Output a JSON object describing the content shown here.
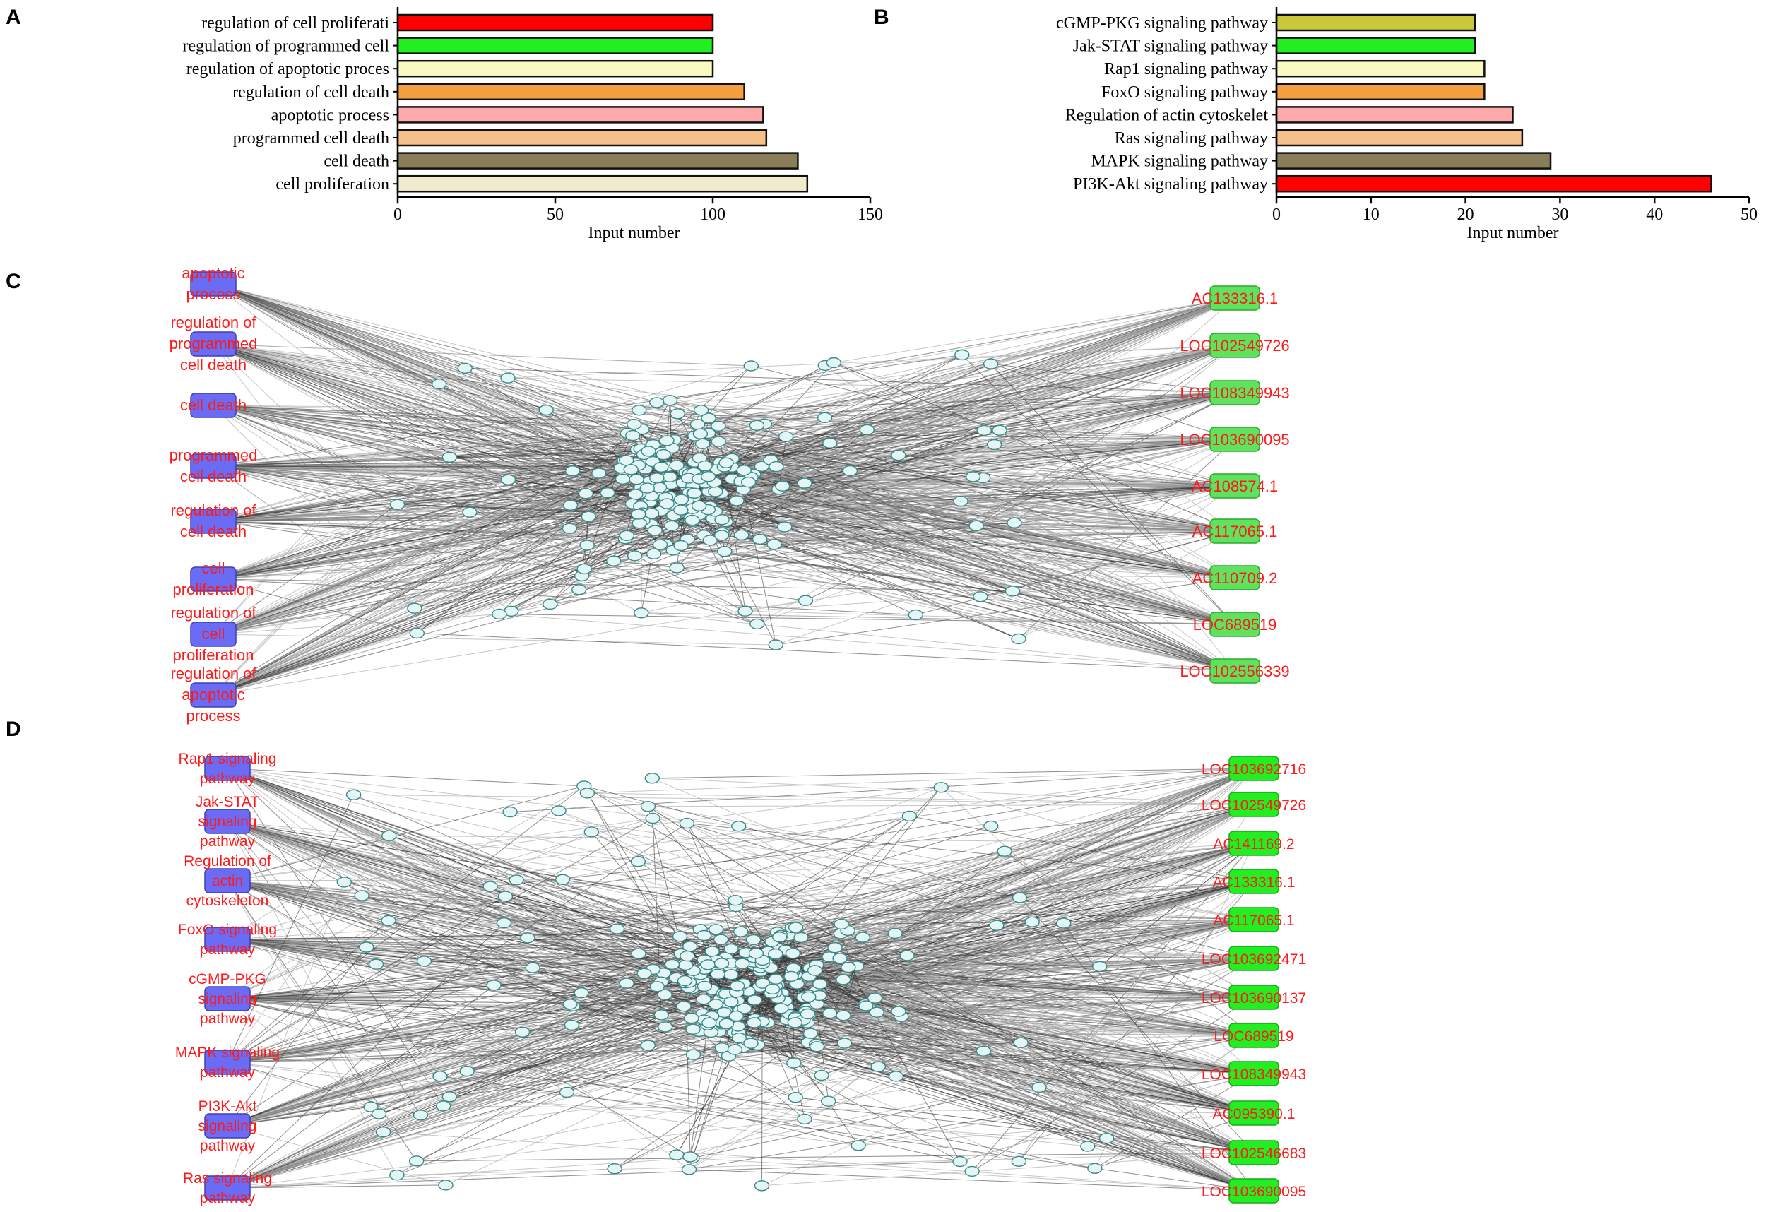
{
  "chart_data": [
    {
      "panel": "A",
      "type": "bar",
      "orientation": "horizontal",
      "categories": [
        "regulation of cell proliferati",
        "regulation of programmed cell ",
        "regulation of apoptotic proces",
        "regulation of cell death",
        "apoptotic process",
        "programmed cell death",
        "cell death",
        "cell proliferation"
      ],
      "values": [
        100,
        100,
        100,
        110,
        116,
        117,
        127,
        130
      ],
      "colors": [
        "#ff0000",
        "#22ee22",
        "#fafac0",
        "#f5a040",
        "#ffaaaa",
        "#f5c08a",
        "#8a7d5a",
        "#f0ebcc"
      ],
      "xlabel": "Input number",
      "xlim": [
        0,
        150
      ],
      "xticks": [
        0,
        50,
        100,
        150
      ]
    },
    {
      "panel": "B",
      "type": "bar",
      "orientation": "horizontal",
      "categories": [
        "cGMP-PKG signaling pathway",
        "Jak-STAT signaling pathway",
        "Rap1 signaling pathway",
        "FoxO signaling pathway",
        "Regulation of actin cytoskelet",
        "Ras signaling pathway",
        "MAPK signaling pathway",
        "PI3K-Akt signaling pathway"
      ],
      "values": [
        21,
        21,
        22,
        22,
        25,
        26,
        29,
        46
      ],
      "colors": [
        "#c8c83a",
        "#22ee22",
        "#fafac0",
        "#f5a040",
        "#ffaaaa",
        "#f5c08a",
        "#8a7d5a",
        "#ff0000"
      ],
      "xlabel": "Input number",
      "xlim": [
        0,
        50
      ],
      "xticks": [
        0,
        10,
        20,
        30,
        40,
        50
      ]
    },
    {
      "panel": "C",
      "type": "network",
      "source_nodes": [
        [
          "apoptotic",
          "process"
        ],
        [
          "regulation of",
          "programmed",
          "cell death"
        ],
        [
          "cell death"
        ],
        [
          "programmed",
          "cell death"
        ],
        [
          "regulation of",
          "cell death"
        ],
        [
          "cell",
          "proliferation"
        ],
        [
          "regulation of",
          "cell",
          "proliferation"
        ],
        [
          "regulation of",
          "apoptotic",
          "process"
        ]
      ],
      "target_nodes": [
        "AC133316.1",
        "LOC102549726",
        "LOC108349943",
        "LOC103690095",
        "AC108574.1",
        "AC117065.1",
        "AC110709.2",
        "LOC689519",
        "LOC102556339"
      ]
    },
    {
      "panel": "D",
      "type": "network",
      "source_nodes": [
        [
          "Rap1 signaling",
          "pathway"
        ],
        [
          "Jak-STAT",
          "signaling",
          "pathway"
        ],
        [
          "Regulation of",
          "actin",
          "cytoskeleton"
        ],
        [
          "FoxO signaling",
          "pathway"
        ],
        [
          "cGMP-PKG",
          "signaling",
          "pathway"
        ],
        [
          "MAPK signaling",
          "pathway"
        ],
        [
          "PI3K-Akt",
          "signaling",
          "pathway"
        ],
        [
          "Ras signaling",
          "pathway"
        ]
      ],
      "target_nodes": [
        "LOC103692716",
        "LOC102549726",
        "AC141169.2",
        "AC133316.1",
        "AC117065.1",
        "LOC103692471",
        "LOC103690137",
        "LOC689519",
        "LOC108349943",
        "AC095390.1",
        "LOC102546683",
        "LOC103690095"
      ]
    }
  ]
}
